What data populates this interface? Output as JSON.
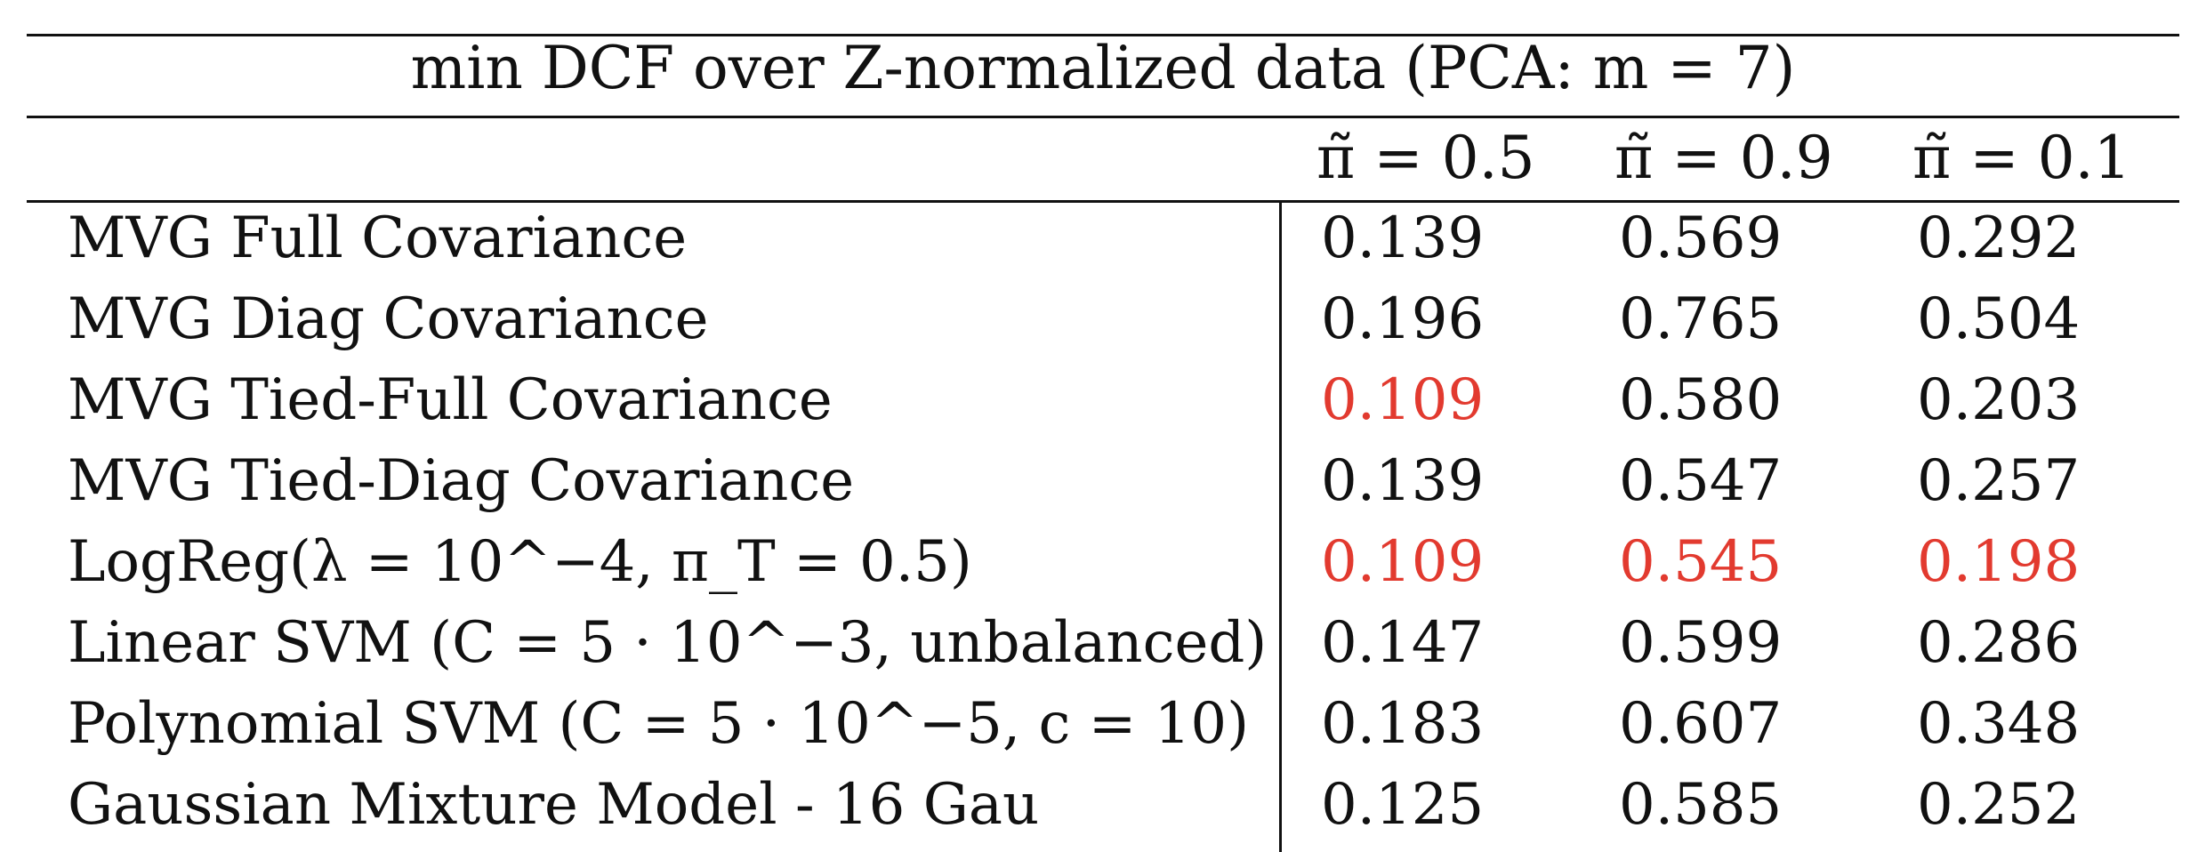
{
  "table": {
    "title": "min DCF over Z-normalized data (PCA: m = 7)",
    "columns": [
      "π̃ = 0.5",
      "π̃ = 0.9",
      "π̃ = 0.1"
    ],
    "rows": [
      {
        "label": "MVG Full Covariance",
        "values": [
          "0.139",
          "0.569",
          "0.292"
        ],
        "highlight": [
          false,
          false,
          false
        ]
      },
      {
        "label": "MVG Diag Covariance",
        "values": [
          "0.196",
          "0.765",
          "0.504"
        ],
        "highlight": [
          false,
          false,
          false
        ]
      },
      {
        "label": "MVG Tied-Full Covariance",
        "values": [
          "0.109",
          "0.580",
          "0.203"
        ],
        "highlight": [
          true,
          false,
          false
        ]
      },
      {
        "label": "MVG Tied-Diag Covariance",
        "values": [
          "0.139",
          "0.547",
          "0.257"
        ],
        "highlight": [
          false,
          false,
          false
        ]
      },
      {
        "label": "LogReg(λ = 10^−4, π_T = 0.5)",
        "values": [
          "0.109",
          "0.545",
          "0.198"
        ],
        "highlight": [
          true,
          true,
          true
        ]
      },
      {
        "label": "Linear SVM (C = 5 · 10^−3, unbalanced)",
        "values": [
          "0.147",
          "0.599",
          "0.286"
        ],
        "highlight": [
          false,
          false,
          false
        ]
      },
      {
        "label": "Polynomial SVM (C = 5 · 10^−5, c = 10)",
        "values": [
          "0.183",
          "0.607",
          "0.348"
        ],
        "highlight": [
          false,
          false,
          false
        ]
      },
      {
        "label": "Gaussian Mixture Model - 16 Gau",
        "values": [
          "0.125",
          "0.585",
          "0.252"
        ],
        "highlight": [
          false,
          false,
          false
        ]
      }
    ],
    "highlight_color": "#e23a2f"
  }
}
